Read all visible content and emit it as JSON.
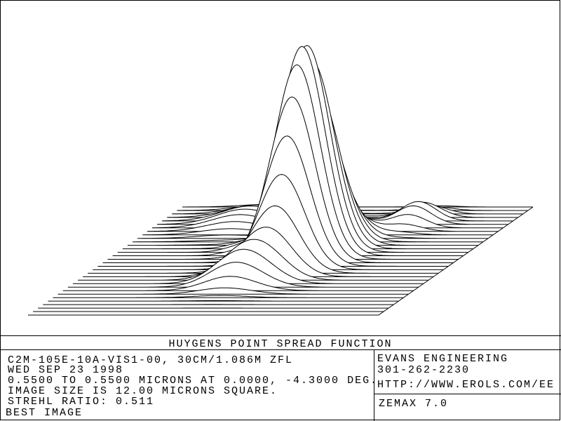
{
  "title": "HUYGENS POINT SPREAD FUNCTION",
  "info": {
    "lines": [
      "C2M-105E-10A-VIS1-00, 30CM/1.086M ZFL",
      "WED SEP 23 1998",
      "0.5500 TO 0.5500 MICRONS AT 0.0000, -4.3000 DEG.",
      "IMAGE SIZE IS 12.00 MICRONS SQUARE.",
      "STREHL RATIO: 0.511",
      "BEST IMAGE"
    ]
  },
  "company": {
    "lines": [
      "EVANS ENGINEERING",
      "301-262-2230",
      "HTTP://WWW.EROLS.COM/EE"
    ]
  },
  "software": "ZEMAX 7.0"
}
